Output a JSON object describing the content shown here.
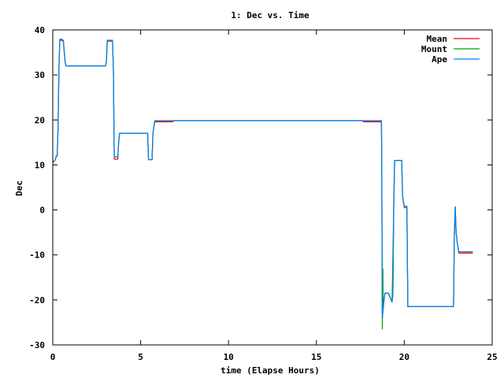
{
  "chart_data": {
    "type": "line",
    "title": "1: Dec vs. Time",
    "xlabel": "time (Elapse Hours)",
    "ylabel": "Dec",
    "xlim": [
      0,
      25
    ],
    "ylim": [
      -30,
      40
    ],
    "xticks": [
      0,
      5,
      10,
      15,
      20,
      25
    ],
    "yticks": [
      -30,
      -20,
      -10,
      0,
      10,
      20,
      30,
      40
    ],
    "grid": false,
    "legend": "top-right",
    "series": [
      {
        "name": "Mean",
        "color": "#ff0000",
        "points": [
          [
            0,
            10.5
          ],
          [
            0.15,
            11.2
          ],
          [
            0.2,
            12
          ],
          [
            0.25,
            12
          ],
          [
            0.3,
            18
          ],
          [
            0.35,
            31
          ],
          [
            0.4,
            37.5
          ],
          [
            0.45,
            37.8
          ],
          [
            0.6,
            37.5
          ],
          [
            0.7,
            33
          ],
          [
            0.75,
            32
          ],
          [
            3.0,
            32
          ],
          [
            3.05,
            33
          ],
          [
            3.1,
            37.5
          ],
          [
            3.4,
            37.5
          ],
          [
            3.45,
            31
          ],
          [
            3.5,
            11.3
          ],
          [
            3.7,
            11.3
          ],
          [
            3.75,
            15
          ],
          [
            3.8,
            17
          ],
          [
            5.4,
            17
          ],
          [
            5.45,
            11.2
          ],
          [
            5.65,
            11.2
          ],
          [
            5.7,
            17
          ],
          [
            5.8,
            19.6
          ],
          [
            6.8,
            19.6
          ],
          [
            6.9,
            19.8
          ],
          [
            17.6,
            19.8
          ],
          [
            17.7,
            19.6
          ],
          [
            18.7,
            19.6
          ],
          [
            18.72,
            9
          ],
          [
            18.75,
            -24
          ],
          [
            18.8,
            -22
          ],
          [
            18.85,
            -20
          ],
          [
            18.9,
            -18.5
          ],
          [
            19.1,
            -18.5
          ],
          [
            19.15,
            -19
          ],
          [
            19.3,
            -20.5
          ],
          [
            19.35,
            -19
          ],
          [
            19.4,
            0
          ],
          [
            19.45,
            11
          ],
          [
            19.85,
            11
          ],
          [
            19.9,
            3
          ],
          [
            20.0,
            0.5
          ],
          [
            20.15,
            0.5
          ],
          [
            20.2,
            -21.5
          ],
          [
            22.8,
            -21.5
          ],
          [
            22.85,
            -5
          ],
          [
            22.9,
            0.5
          ],
          [
            22.95,
            -5
          ],
          [
            23.0,
            -7
          ],
          [
            23.1,
            -9.6
          ],
          [
            23.9,
            -9.6
          ]
        ]
      },
      {
        "name": "Mount",
        "color": "#00a000",
        "points": [
          [
            0,
            10.5
          ],
          [
            0.15,
            11.2
          ],
          [
            0.2,
            12
          ],
          [
            0.25,
            12
          ],
          [
            0.3,
            18
          ],
          [
            0.35,
            31
          ],
          [
            0.4,
            37.8
          ],
          [
            0.45,
            38
          ],
          [
            0.6,
            37.7
          ],
          [
            0.7,
            33
          ],
          [
            0.75,
            32
          ],
          [
            3.0,
            32
          ],
          [
            3.05,
            33
          ],
          [
            3.1,
            37.7
          ],
          [
            3.4,
            37.7
          ],
          [
            3.45,
            31
          ],
          [
            3.5,
            11.8
          ],
          [
            3.7,
            11.8
          ],
          [
            3.75,
            15
          ],
          [
            3.8,
            17
          ],
          [
            5.4,
            17
          ],
          [
            5.45,
            11.2
          ],
          [
            5.65,
            11.2
          ],
          [
            5.7,
            17
          ],
          [
            5.8,
            19.8
          ],
          [
            17.6,
            19.8
          ],
          [
            18.7,
            19.8
          ],
          [
            18.72,
            9
          ],
          [
            18.75,
            -26.5
          ],
          [
            18.78,
            -13
          ],
          [
            18.8,
            -22
          ],
          [
            18.85,
            -20
          ],
          [
            18.9,
            -18.5
          ],
          [
            19.1,
            -18.5
          ],
          [
            19.15,
            -19
          ],
          [
            19.3,
            -20.5
          ],
          [
            19.35,
            -10.5
          ],
          [
            19.4,
            2
          ],
          [
            19.45,
            11
          ],
          [
            19.85,
            11
          ],
          [
            19.9,
            3
          ],
          [
            20.0,
            0.8
          ],
          [
            20.15,
            0.8
          ],
          [
            20.2,
            -21.5
          ],
          [
            22.8,
            -21.5
          ],
          [
            22.85,
            -5
          ],
          [
            22.9,
            0.8
          ],
          [
            22.95,
            -5
          ],
          [
            23.0,
            -7
          ],
          [
            23.1,
            -9.3
          ],
          [
            23.9,
            -9.3
          ]
        ]
      },
      {
        "name": "Ape",
        "color": "#0080ff",
        "points": [
          [
            0,
            10.5
          ],
          [
            0.15,
            11.2
          ],
          [
            0.2,
            12
          ],
          [
            0.25,
            12
          ],
          [
            0.3,
            18
          ],
          [
            0.35,
            31
          ],
          [
            0.4,
            37.8
          ],
          [
            0.45,
            38
          ],
          [
            0.6,
            37.7
          ],
          [
            0.7,
            33
          ],
          [
            0.75,
            32
          ],
          [
            3.0,
            32
          ],
          [
            3.05,
            33
          ],
          [
            3.1,
            37.7
          ],
          [
            3.4,
            37.7
          ],
          [
            3.45,
            31
          ],
          [
            3.5,
            11.8
          ],
          [
            3.7,
            11.8
          ],
          [
            3.75,
            15
          ],
          [
            3.8,
            17
          ],
          [
            5.4,
            17
          ],
          [
            5.45,
            11.2
          ],
          [
            5.65,
            11.2
          ],
          [
            5.7,
            17
          ],
          [
            5.8,
            19.8
          ],
          [
            17.6,
            19.8
          ],
          [
            18.7,
            19.8
          ],
          [
            18.72,
            9
          ],
          [
            18.75,
            -24
          ],
          [
            18.8,
            -22
          ],
          [
            18.85,
            -20
          ],
          [
            18.9,
            -18.5
          ],
          [
            19.1,
            -18.5
          ],
          [
            19.15,
            -19
          ],
          [
            19.3,
            -20.5
          ],
          [
            19.35,
            -19
          ],
          [
            19.4,
            2
          ],
          [
            19.45,
            11
          ],
          [
            19.85,
            11
          ],
          [
            19.9,
            3
          ],
          [
            20.0,
            0.8
          ],
          [
            20.15,
            0.8
          ],
          [
            20.2,
            -21.5
          ],
          [
            22.8,
            -21.5
          ],
          [
            22.85,
            -5
          ],
          [
            22.9,
            0.8
          ],
          [
            22.95,
            -5
          ],
          [
            23.0,
            -7
          ],
          [
            23.1,
            -9.3
          ],
          [
            23.9,
            -9.3
          ]
        ]
      }
    ]
  }
}
